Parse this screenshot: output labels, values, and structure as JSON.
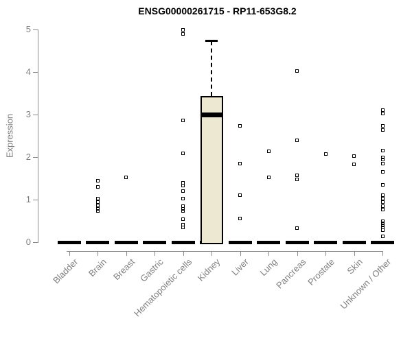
{
  "chart_data": {
    "type": "boxplot",
    "title": "ENSG00000261715 - RP11-653G8.2",
    "ylabel": "Expression",
    "xlabel": "",
    "ylim": [
      0,
      5
    ],
    "yticks": [
      0,
      1,
      2,
      3,
      4,
      5
    ],
    "grid": false,
    "legend": "none",
    "colors": {
      "box_fill": "#EDE8D1",
      "box_border": "#000000",
      "axis": "#888888",
      "tick_label": "#7f7f7f",
      "title": "#000000"
    },
    "categories": [
      "Bladder",
      "Brain",
      "Breast",
      "Gastric",
      "Hematopoietic cells",
      "Kidney",
      "Liver",
      "Lung",
      "Pancreas",
      "Prostate",
      "Skin",
      "Unknown / Other"
    ],
    "boxes": [
      {
        "category": "Bladder",
        "q1": 0,
        "median": 0,
        "q3": 0,
        "whisker_low": 0,
        "whisker_high": 0,
        "outliers": []
      },
      {
        "category": "Brain",
        "q1": 0,
        "median": 0,
        "q3": 0,
        "whisker_low": 0,
        "whisker_high": 0,
        "outliers": [
          1.45,
          1.3,
          1.02,
          0.94,
          0.87,
          0.79,
          0.73
        ]
      },
      {
        "category": "Breast",
        "q1": 0,
        "median": 0,
        "q3": 0,
        "whisker_low": 0,
        "whisker_high": 0,
        "outliers": [
          1.53
        ]
      },
      {
        "category": "Gastric",
        "q1": 0,
        "median": 0,
        "q3": 0,
        "whisker_low": 0,
        "whisker_high": 0,
        "outliers": []
      },
      {
        "category": "Hematopoietic cells",
        "q1": 0,
        "median": 0,
        "q3": 0,
        "whisker_low": 0,
        "whisker_high": 0,
        "outliers": [
          5.0,
          4.89,
          2.87,
          2.09,
          1.4,
          1.33,
          1.2,
          1.02,
          0.85,
          0.79,
          0.73,
          0.54,
          0.41,
          0.34
        ]
      },
      {
        "category": "Kidney",
        "q1": 0,
        "median": 3.0,
        "q3": 3.44,
        "whisker_low": 0,
        "whisker_high": 4.73,
        "outliers": []
      },
      {
        "category": "Liver",
        "q1": 0,
        "median": 0,
        "q3": 0,
        "whisker_low": 0,
        "whisker_high": 0,
        "outliers": [
          2.74,
          1.85,
          1.1,
          0.56
        ]
      },
      {
        "category": "Lung",
        "q1": 0,
        "median": 0,
        "q3": 0,
        "whisker_low": 0,
        "whisker_high": 0,
        "outliers": [
          2.13,
          1.53
        ]
      },
      {
        "category": "Pancreas",
        "q1": 0,
        "median": 0,
        "q3": 0,
        "whisker_low": 0,
        "whisker_high": 0,
        "outliers": [
          4.02,
          2.39,
          1.58,
          1.47,
          0.33
        ]
      },
      {
        "category": "Prostate",
        "q1": 0,
        "median": 0,
        "q3": 0,
        "whisker_low": 0,
        "whisker_high": 0,
        "outliers": [
          2.08
        ]
      },
      {
        "category": "Skin",
        "q1": 0,
        "median": 0,
        "q3": 0,
        "whisker_low": 0,
        "whisker_high": 0,
        "outliers": [
          2.03,
          1.83
        ]
      },
      {
        "category": "Unknown / Other",
        "q1": 0,
        "median": 0,
        "q3": 0,
        "whisker_low": 0,
        "whisker_high": 0,
        "outliers": [
          3.1,
          3.02,
          2.74,
          2.63,
          2.15,
          2.0,
          1.95,
          1.85,
          1.65,
          1.35,
          1.1,
          1.02,
          0.94,
          0.85,
          0.76,
          0.5,
          0.45,
          0.4,
          0.34,
          0.28,
          0.13
        ]
      }
    ]
  }
}
